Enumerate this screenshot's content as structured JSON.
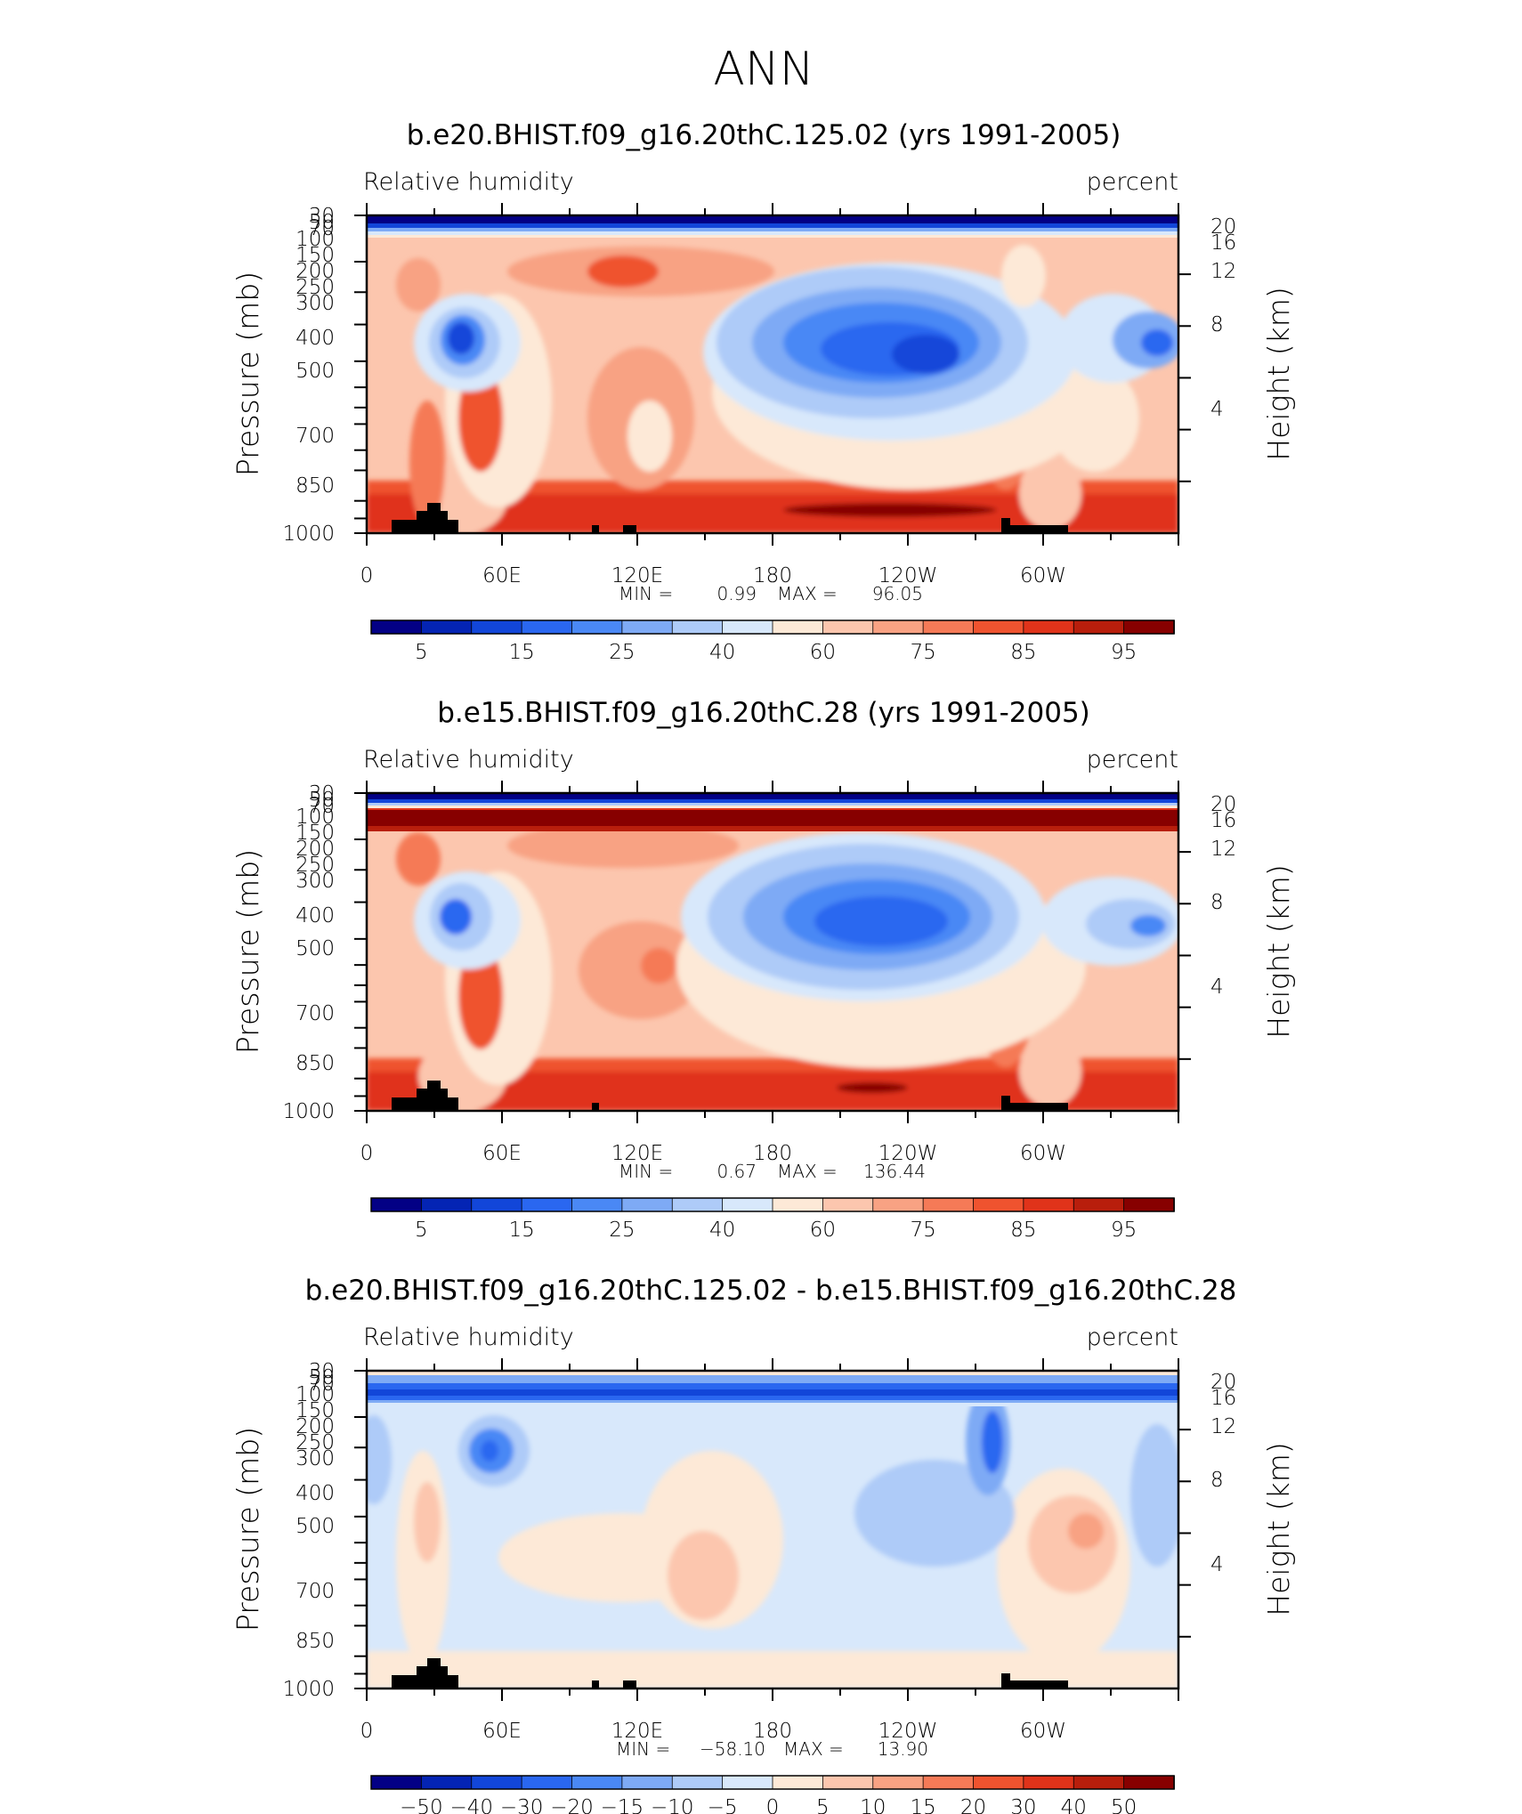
{
  "figure": {
    "main_title": "ANN"
  },
  "chart_data": [
    {
      "type": "heatmap",
      "title": "b.e20.BHIST.f09_g16.20thC.125.02 (yrs 1991-2005)",
      "variable_label": "Relative humidity",
      "units_label": "percent",
      "ylabel": "Pressure (mb)",
      "y2label": "Height (km)",
      "x_ticks": [
        "0",
        "60E",
        "120E",
        "180",
        "120W",
        "60W"
      ],
      "y_ticks": [
        "30",
        "50",
        "70",
        "100",
        "150",
        "200",
        "250",
        "300",
        "400",
        "500",
        "700",
        "850",
        "1000"
      ],
      "y2_ticks": [
        "20",
        "16",
        "12",
        "8",
        "4"
      ],
      "min_label": "MIN =",
      "min_value": "0.99",
      "max_label": "MAX =",
      "max_value": "96.05",
      "colorbar_labels": [
        "5",
        "15",
        "25",
        "40",
        "60",
        "75",
        "85",
        "95"
      ],
      "ylim": [
        1000,
        30
      ],
      "xlim": [
        0,
        360
      ],
      "colors": [
        "#030085",
        "#0424b4",
        "#1246d9",
        "#2a67f0",
        "#4a88f5",
        "#7eaaf5",
        "#aecbf8",
        "#d8e8fb",
        "#fde9d7",
        "#fcc6ae",
        "#f8a283",
        "#f57a57",
        "#ef532f",
        "#e0331a",
        "#b81e0c",
        "#870000"
      ]
    },
    {
      "type": "heatmap",
      "title": "b.e15.BHIST.f09_g16.20thC.28 (yrs 1991-2005)",
      "variable_label": "Relative humidity",
      "units_label": "percent",
      "ylabel": "Pressure (mb)",
      "y2label": "Height (km)",
      "x_ticks": [
        "0",
        "60E",
        "120E",
        "180",
        "120W",
        "60W"
      ],
      "y_ticks": [
        "30",
        "50",
        "70",
        "100",
        "150",
        "200",
        "250",
        "300",
        "400",
        "500",
        "700",
        "850",
        "1000"
      ],
      "y2_ticks": [
        "20",
        "16",
        "12",
        "8",
        "4"
      ],
      "min_label": "MIN =",
      "min_value": "0.67",
      "max_label": "MAX =",
      "max_value": "136.44",
      "colorbar_labels": [
        "5",
        "15",
        "25",
        "40",
        "60",
        "75",
        "85",
        "95"
      ],
      "ylim": [
        1000,
        30
      ],
      "xlim": [
        0,
        360
      ],
      "colors": [
        "#030085",
        "#0424b4",
        "#1246d9",
        "#2a67f0",
        "#4a88f5",
        "#7eaaf5",
        "#aecbf8",
        "#d8e8fb",
        "#fde9d7",
        "#fcc6ae",
        "#f8a283",
        "#f57a57",
        "#ef532f",
        "#e0331a",
        "#b81e0c",
        "#870000"
      ]
    },
    {
      "type": "heatmap",
      "title": "b.e20.BHIST.f09_g16.20thC.125.02 - b.e15.BHIST.f09_g16.20thC.28",
      "variable_label": "Relative humidity",
      "units_label": "percent",
      "ylabel": "Pressure (mb)",
      "y2label": "Height (km)",
      "x_ticks": [
        "0",
        "60E",
        "120E",
        "180",
        "120W",
        "60W"
      ],
      "y_ticks": [
        "30",
        "50",
        "70",
        "100",
        "150",
        "200",
        "250",
        "300",
        "400",
        "500",
        "700",
        "850",
        "1000"
      ],
      "y2_ticks": [
        "20",
        "16",
        "12",
        "8",
        "4"
      ],
      "min_label": "MIN =",
      "min_value": "−58.10",
      "max_label": "MAX =",
      "max_value": "13.90",
      "colorbar_labels": [
        "−50",
        "−40",
        "−30",
        "−20",
        "−15",
        "−10",
        "−5",
        "0",
        "5",
        "10",
        "15",
        "20",
        "30",
        "40",
        "50"
      ],
      "ylim": [
        1000,
        30
      ],
      "xlim": [
        0,
        360
      ],
      "colors": [
        "#030085",
        "#0424b4",
        "#1246d9",
        "#2a67f0",
        "#4a88f5",
        "#7eaaf5",
        "#aecbf8",
        "#d8e8fb",
        "#fde9d7",
        "#fcc6ae",
        "#f8a283",
        "#f57a57",
        "#ef532f",
        "#e0331a",
        "#b81e0c",
        "#870000"
      ]
    }
  ]
}
